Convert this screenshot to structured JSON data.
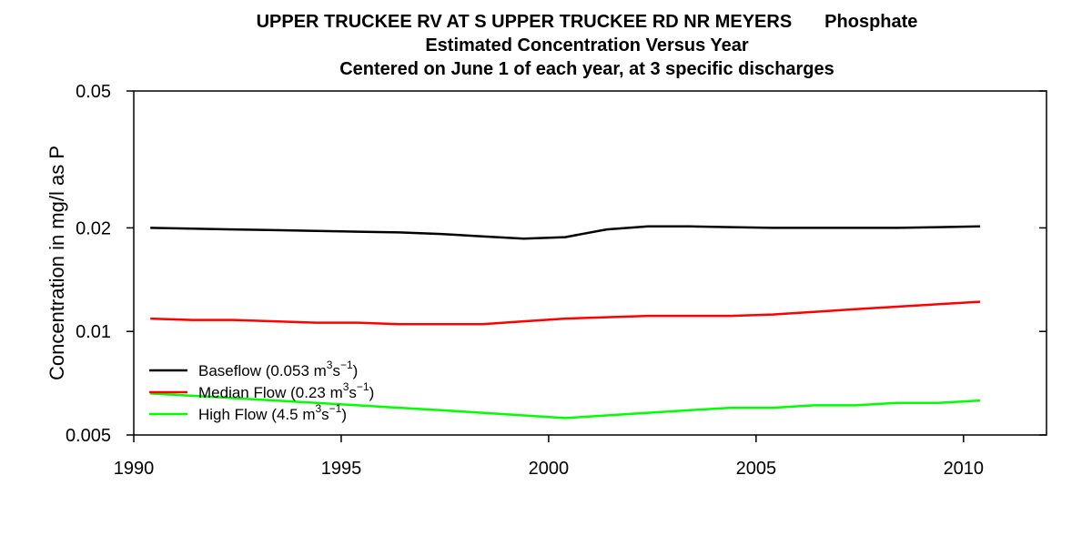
{
  "chart_data": {
    "type": "line",
    "title_lines": [
      {
        "main": "UPPER TRUCKEE RV AT S UPPER TRUCKEE RD NR MEYERS",
        "extra": "Phosphate"
      },
      {
        "main": "Estimated Concentration Versus Year",
        "extra": ""
      },
      {
        "main": "Centered on June 1 of each year, at 3 specific discharges",
        "extra": ""
      }
    ],
    "xlabel": "",
    "ylabel": "Concentration in mg/l as P",
    "xlim": [
      1990,
      2012
    ],
    "ylim": [
      0.005,
      0.05
    ],
    "y_scale": "log",
    "x_ticks": [
      1990,
      1995,
      2000,
      2005,
      2010
    ],
    "x_tick_labels": [
      "1990",
      "1995",
      "2000",
      "2005",
      "2010"
    ],
    "y_ticks": [
      0.005,
      0.01,
      0.02,
      0.05
    ],
    "y_tick_labels": [
      "0.005",
      "0.01",
      "0.02",
      "0.05"
    ],
    "grid": false,
    "legend_position": "bottom-left",
    "x": [
      1990.4,
      1991.4,
      1992.4,
      1993.4,
      1994.4,
      1995.4,
      1996.4,
      1997.4,
      1998.4,
      1999.4,
      2000.4,
      2001.4,
      2002.4,
      2003.4,
      2004.4,
      2005.4,
      2006.4,
      2007.4,
      2008.4,
      2009.4,
      2010.4
    ],
    "series": [
      {
        "name": "Baseflow (0.053 m³s⁻¹)",
        "legend_parts": [
          "Baseflow (0.053 m",
          "3",
          "s",
          "−1",
          ")"
        ],
        "color": "#000000",
        "values": [
          0.02,
          0.0199,
          0.0198,
          0.0197,
          0.0196,
          0.0195,
          0.0194,
          0.0192,
          0.0189,
          0.0186,
          0.0188,
          0.0198,
          0.0202,
          0.0202,
          0.0201,
          0.02,
          0.02,
          0.02,
          0.02,
          0.0201,
          0.0202
        ]
      },
      {
        "name": "Median Flow (0.23 m³s⁻¹)",
        "legend_parts": [
          "Median Flow (0.23 m",
          "3",
          "s",
          "−1",
          ")"
        ],
        "color": "#ff0000",
        "values": [
          0.0109,
          0.0108,
          0.0108,
          0.0107,
          0.0106,
          0.0106,
          0.0105,
          0.0105,
          0.0105,
          0.0107,
          0.0109,
          0.011,
          0.0111,
          0.0111,
          0.0111,
          0.0112,
          0.0114,
          0.0116,
          0.0118,
          0.012,
          0.0122
        ]
      },
      {
        "name": "High Flow (4.5 m³s⁻¹)",
        "legend_parts": [
          "High Flow (4.5 m",
          "3",
          "s",
          "−1",
          ")"
        ],
        "color": "#00ff00",
        "values": [
          0.0066,
          0.0065,
          0.0064,
          0.0063,
          0.0062,
          0.0061,
          0.006,
          0.0059,
          0.0058,
          0.0057,
          0.0056,
          0.0057,
          0.0058,
          0.0059,
          0.006,
          0.006,
          0.0061,
          0.0061,
          0.0062,
          0.0062,
          0.0063
        ]
      }
    ]
  }
}
